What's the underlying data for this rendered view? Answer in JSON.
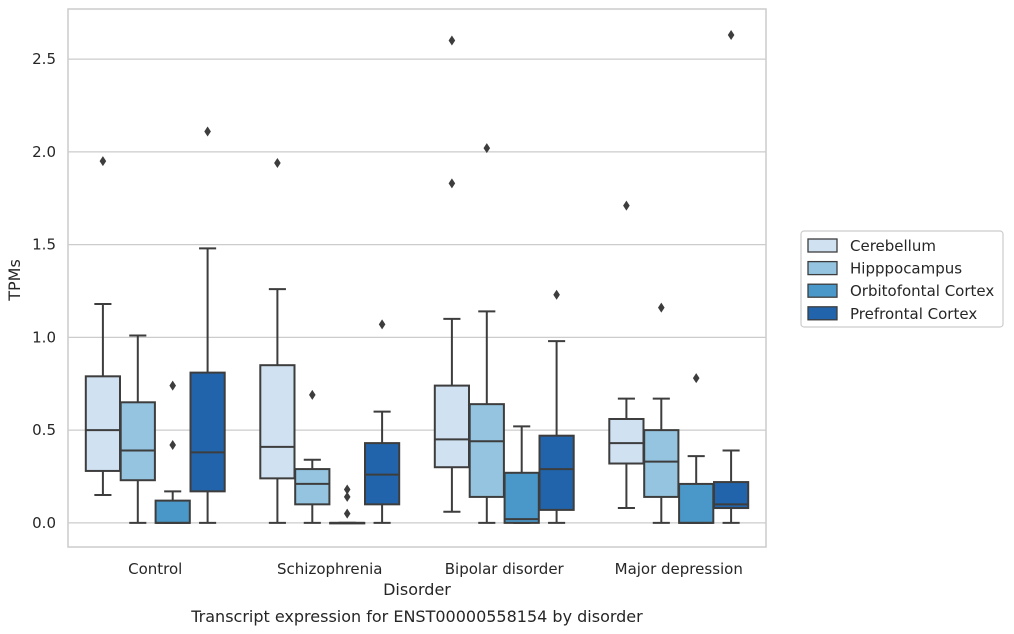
{
  "chart_data": {
    "type": "box",
    "xlabel": "Disorder",
    "ylabel": "TPMs",
    "caption": "Transcript expression for ENST00000558154 by disorder",
    "ylim": [
      -0.13,
      2.77
    ],
    "yticks": [
      0.0,
      0.5,
      1.0,
      1.5,
      2.0,
      2.5
    ],
    "ytick_labels": [
      "0.0",
      "0.5",
      "1.0",
      "1.5",
      "2.0",
      "2.5"
    ],
    "categories": [
      "Control",
      "Schizophrenia",
      "Bipolar disorder",
      "Major depression"
    ],
    "grid": "horizontal",
    "legend_position": "right",
    "series": [
      {
        "name": "Cerebellum",
        "color": "#d0e1f2",
        "boxes": [
          {
            "whislo": 0.15,
            "q1": 0.28,
            "med": 0.5,
            "q3": 0.79,
            "whishi": 1.18,
            "fliers": [
              1.95
            ]
          },
          {
            "whislo": 0.0,
            "q1": 0.24,
            "med": 0.41,
            "q3": 0.85,
            "whishi": 1.26,
            "fliers": [
              1.94
            ]
          },
          {
            "whislo": 0.06,
            "q1": 0.3,
            "med": 0.45,
            "q3": 0.74,
            "whishi": 1.1,
            "fliers": [
              2.6,
              1.83
            ]
          },
          {
            "whislo": 0.08,
            "q1": 0.32,
            "med": 0.43,
            "q3": 0.56,
            "whishi": 0.67,
            "fliers": [
              1.71
            ]
          }
        ]
      },
      {
        "name": "Hipppocampus",
        "color": "#94c4df",
        "boxes": [
          {
            "whislo": 0.0,
            "q1": 0.23,
            "med": 0.39,
            "q3": 0.65,
            "whishi": 1.01,
            "fliers": []
          },
          {
            "whislo": 0.0,
            "q1": 0.1,
            "med": 0.21,
            "q3": 0.29,
            "whishi": 0.34,
            "fliers": [
              0.69
            ]
          },
          {
            "whislo": 0.0,
            "q1": 0.14,
            "med": 0.44,
            "q3": 0.64,
            "whishi": 1.14,
            "fliers": [
              2.02
            ]
          },
          {
            "whislo": 0.0,
            "q1": 0.14,
            "med": 0.33,
            "q3": 0.5,
            "whishi": 0.67,
            "fliers": [
              1.16
            ]
          }
        ]
      },
      {
        "name": "Orbitofontal Cortex",
        "color": "#4a98c9",
        "boxes": [
          {
            "whislo": 0.0,
            "q1": 0.0,
            "med": 0.0,
            "q3": 0.12,
            "whishi": 0.17,
            "fliers": [
              0.74,
              0.42
            ]
          },
          {
            "whislo": 0.0,
            "q1": 0.0,
            "med": 0.0,
            "q3": 0.0,
            "whishi": 0.0,
            "fliers": [
              0.18,
              0.14,
              0.05
            ]
          },
          {
            "whislo": 0.0,
            "q1": 0.0,
            "med": 0.02,
            "q3": 0.27,
            "whishi": 0.52,
            "fliers": []
          },
          {
            "whislo": 0.0,
            "q1": 0.0,
            "med": 0.0,
            "q3": 0.21,
            "whishi": 0.36,
            "fliers": [
              0.78
            ]
          }
        ]
      },
      {
        "name": "Prefrontal Cortex",
        "color": "#2164ab",
        "boxes": [
          {
            "whislo": 0.0,
            "q1": 0.17,
            "med": 0.38,
            "q3": 0.81,
            "whishi": 1.48,
            "fliers": [
              2.11
            ]
          },
          {
            "whislo": 0.0,
            "q1": 0.1,
            "med": 0.26,
            "q3": 0.43,
            "whishi": 0.6,
            "fliers": [
              1.07
            ]
          },
          {
            "whislo": 0.0,
            "q1": 0.07,
            "med": 0.29,
            "q3": 0.47,
            "whishi": 0.98,
            "fliers": [
              1.23
            ]
          },
          {
            "whislo": 0.0,
            "q1": 0.08,
            "med": 0.1,
            "q3": 0.22,
            "whishi": 0.39,
            "fliers": [
              2.63
            ]
          }
        ]
      }
    ]
  }
}
